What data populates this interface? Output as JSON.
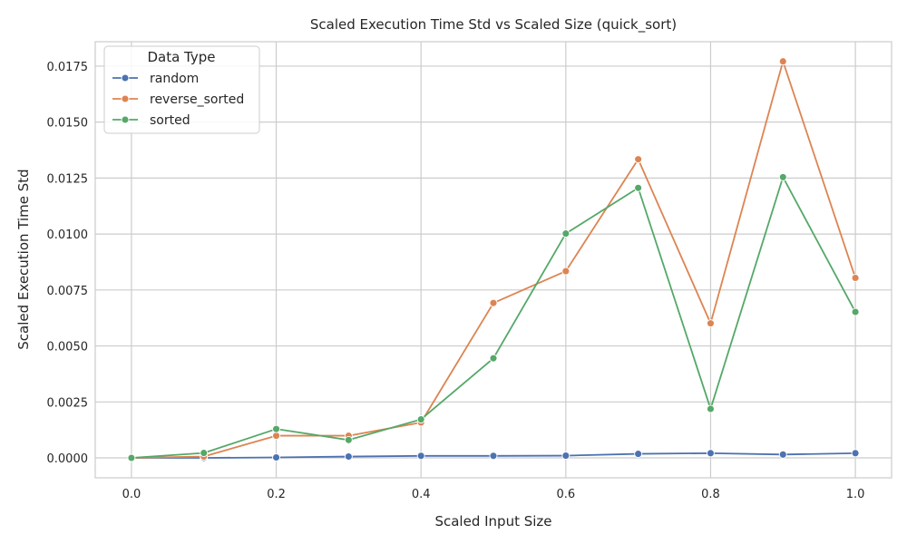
{
  "chart_data": {
    "type": "line",
    "title": "Scaled Execution Time Std vs Scaled Size (quick_sort)",
    "xlabel": "Scaled Input Size",
    "ylabel": "Scaled Execution Time Std",
    "xlim": [
      -0.05,
      1.05
    ],
    "ylim": [
      -0.00089,
      0.01859
    ],
    "x_ticks": [
      0.0,
      0.2,
      0.4,
      0.6,
      0.8,
      1.0
    ],
    "x_tick_labels": [
      "0.0",
      "0.2",
      "0.4",
      "0.6",
      "0.8",
      "1.0"
    ],
    "y_ticks": [
      0.0,
      0.0025,
      0.005,
      0.0075,
      0.01,
      0.0125,
      0.015,
      0.0175
    ],
    "y_tick_labels": [
      "0.0000",
      "0.0025",
      "0.0050",
      "0.0075",
      "0.0100",
      "0.0125",
      "0.0150",
      "0.0175"
    ],
    "grid": true,
    "legend": {
      "title": "Data Type",
      "placement": "top-left"
    },
    "x": [
      0.0,
      0.1,
      0.2,
      0.3,
      0.4,
      0.5,
      0.6,
      0.7,
      0.8,
      0.9,
      1.0
    ],
    "series": [
      {
        "name": "random",
        "color": "#4c72b0",
        "values": [
          0.0,
          0.0,
          2e-05,
          6e-05,
          9e-05,
          9e-05,
          0.0001,
          0.00018,
          0.00021,
          0.00015,
          0.00021
        ]
      },
      {
        "name": "reverse_sorted",
        "color": "#dd8452",
        "values": [
          0.0,
          6e-05,
          0.00099,
          0.00099,
          0.00158,
          0.00692,
          0.00834,
          0.01334,
          0.00601,
          0.01771,
          0.00804
        ]
      },
      {
        "name": "sorted",
        "color": "#55a868",
        "values": [
          0.0,
          0.00022,
          0.00129,
          0.0008,
          0.00172,
          0.00445,
          0.01002,
          0.01206,
          0.00219,
          0.01254,
          0.00652
        ]
      }
    ]
  }
}
